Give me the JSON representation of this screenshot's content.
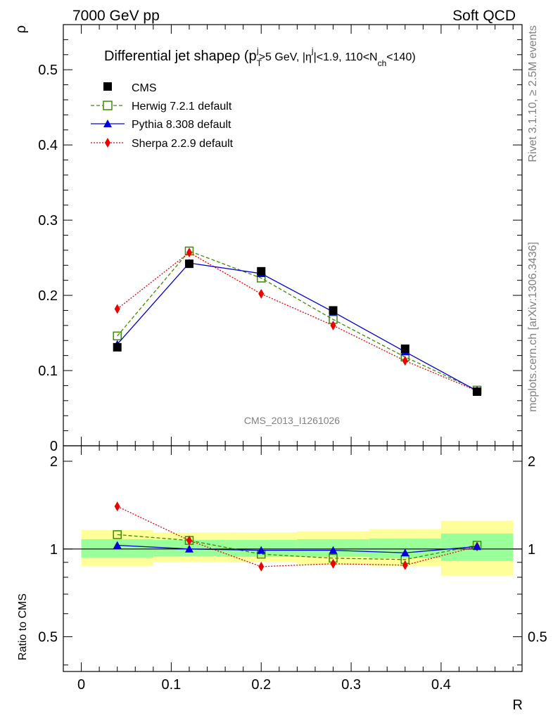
{
  "header": {
    "left": "7000 GeV pp",
    "right": "Soft QCD"
  },
  "side_labels": {
    "rivet": "Rivet 3.1.10, ≥ 2.5M events",
    "mcplots": "mcplots.cern.ch [arXiv:1306.3436]"
  },
  "analysis_id": "CMS_2013_I1261026",
  "chart_data": [
    {
      "type": "line",
      "title": "Differential jet shapeρ (p_T^j>5 GeV, |η^j|<1.9, 110<N_ch<140)",
      "title_parts": {
        "main": "Differential jet shapeρ (p",
        "sub_T": "T",
        "sup_j1": "j",
        "mid1": ">5 GeV, |η",
        "sup_j2": "j",
        "mid2": "|<1.9, 110<N",
        "sub_ch": "ch",
        "end": "<140)"
      },
      "xlabel": "",
      "ylabel": "ρ",
      "xlim": [
        -0.02,
        0.49
      ],
      "ylim": [
        0,
        0.56
      ],
      "yticks": [
        "0.1",
        "0.2",
        "0.3",
        "0.4",
        "0.5"
      ],
      "ytick_zero": "0",
      "ytick_values": [
        0.1,
        0.2,
        0.3,
        0.4,
        0.5
      ],
      "legend_placement": "top-left",
      "x": [
        0.04,
        0.12,
        0.2,
        0.28,
        0.36,
        0.44
      ],
      "series": [
        {
          "name": "CMS",
          "color": "#000000",
          "marker": "filled-square",
          "line": "none",
          "values": [
            0.131,
            0.242,
            0.232,
            0.18,
            0.129,
            0.072
          ]
        },
        {
          "name": "Herwig 7.2.1 default",
          "color": "#3a8c00",
          "marker": "open-square",
          "line": "dashed",
          "values": [
            0.146,
            0.259,
            0.223,
            0.168,
            0.118,
            0.074
          ]
        },
        {
          "name": "Pythia 8.308 default",
          "color": "#0000dd",
          "marker": "triangle",
          "line": "solid",
          "values": [
            0.135,
            0.243,
            0.229,
            0.178,
            0.125,
            0.073
          ]
        },
        {
          "name": "Sherpa 2.2.9 default",
          "color": "#ee0000",
          "marker": "diamond",
          "line": "dotted",
          "values": [
            0.182,
            0.257,
            0.202,
            0.16,
            0.113,
            0.073
          ]
        }
      ]
    },
    {
      "type": "line",
      "xlabel": "R",
      "ylabel": "Ratio to CMS",
      "xlim": [
        -0.02,
        0.49
      ],
      "xticks": [
        "0",
        "0.1",
        "0.2",
        "0.3",
        "0.4"
      ],
      "xtick_values": [
        0,
        0.1,
        0.2,
        0.3,
        0.4
      ],
      "ylim": [
        0.38,
        2.26
      ],
      "ylog": true,
      "yticks": [
        "0.5",
        "1",
        "2"
      ],
      "ytick_values": [
        0.5,
        1,
        2
      ],
      "x": [
        0.04,
        0.12,
        0.2,
        0.28,
        0.36,
        0.44
      ],
      "bins": [
        [
          0.0,
          0.08
        ],
        [
          0.08,
          0.16
        ],
        [
          0.16,
          0.24
        ],
        [
          0.24,
          0.32
        ],
        [
          0.32,
          0.4
        ],
        [
          0.4,
          0.48
        ]
      ],
      "band_outer": [
        [
          0.875,
          1.16
        ],
        [
          0.9,
          1.14
        ],
        [
          0.9,
          1.14
        ],
        [
          0.885,
          1.15
        ],
        [
          0.875,
          1.17
        ],
        [
          0.81,
          1.25
        ]
      ],
      "band_inner": [
        [
          0.935,
          1.08
        ],
        [
          0.945,
          1.075
        ],
        [
          0.94,
          1.075
        ],
        [
          0.94,
          1.08
        ],
        [
          0.93,
          1.085
        ],
        [
          0.91,
          1.13
        ]
      ],
      "series": [
        {
          "name": "Herwig 7.2.1 default",
          "color": "#3a8c00",
          "marker": "open-square",
          "line": "dashed",
          "values": [
            1.12,
            1.07,
            0.96,
            0.93,
            0.92,
            1.03
          ]
        },
        {
          "name": "Pythia 8.308 default",
          "color": "#0000dd",
          "marker": "triangle",
          "line": "solid",
          "values": [
            1.03,
            1.0,
            0.99,
            0.99,
            0.97,
            1.02
          ]
        },
        {
          "name": "Sherpa 2.2.9 default",
          "color": "#ee0000",
          "marker": "diamond",
          "line": "dotted",
          "values": [
            1.4,
            1.07,
            0.87,
            0.89,
            0.88,
            1.02
          ]
        }
      ]
    }
  ]
}
